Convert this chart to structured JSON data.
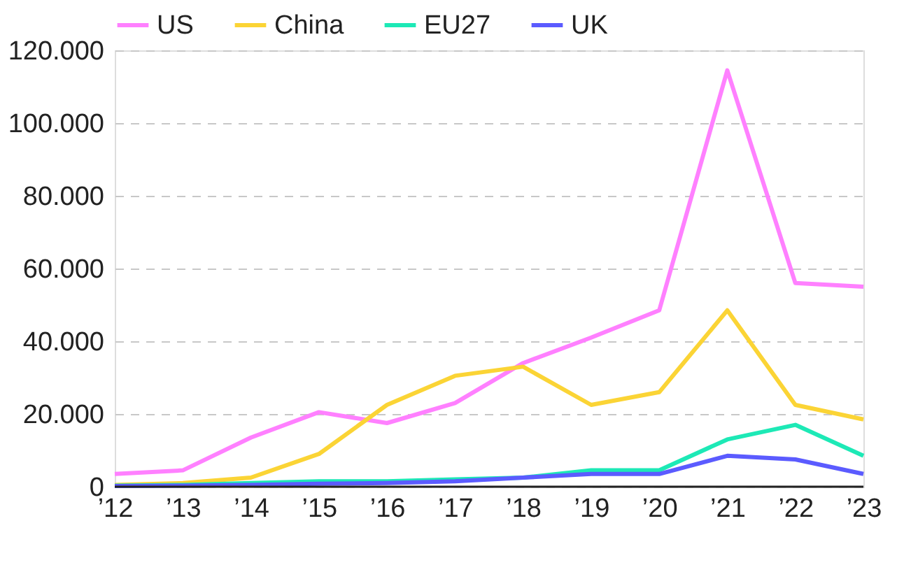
{
  "chart_data": {
    "type": "line",
    "categories": [
      "’12",
      "’13",
      "’14",
      "’15",
      "’16",
      "’17",
      "’18",
      "’19",
      "’20",
      "’21",
      "’22",
      "’23"
    ],
    "series": [
      {
        "name": "US",
        "color": "#ff80ff",
        "values": [
          3500,
          4500,
          13500,
          20500,
          17500,
          23000,
          34000,
          41000,
          48500,
          114500,
          56000,
          55000
        ]
      },
      {
        "name": "China",
        "color": "#fbd435",
        "values": [
          500,
          1000,
          2500,
          9000,
          22500,
          30500,
          33000,
          22500,
          26000,
          48500,
          22500,
          18500
        ]
      },
      {
        "name": "EU27",
        "color": "#1de9b6",
        "values": [
          300,
          500,
          1000,
          1500,
          1500,
          2000,
          2500,
          4500,
          4500,
          13000,
          17000,
          8500
        ]
      },
      {
        "name": "UK",
        "color": "#5b5bff",
        "values": [
          200,
          300,
          500,
          800,
          1000,
          1500,
          2500,
          3500,
          3500,
          8500,
          7500,
          3500
        ]
      }
    ],
    "ylim": [
      0,
      120000
    ],
    "yticks": [
      {
        "value": 0,
        "label": "0"
      },
      {
        "value": 20000,
        "label": "20.000"
      },
      {
        "value": 40000,
        "label": "40.000"
      },
      {
        "value": 60000,
        "label": "60.000"
      },
      {
        "value": 80000,
        "label": "80.000"
      },
      {
        "value": 100000,
        "label": "100.000"
      },
      {
        "value": 120000,
        "label": "120.000"
      }
    ],
    "grid": "y",
    "legend": "top left",
    "marker": "none",
    "line_style": "solid"
  }
}
